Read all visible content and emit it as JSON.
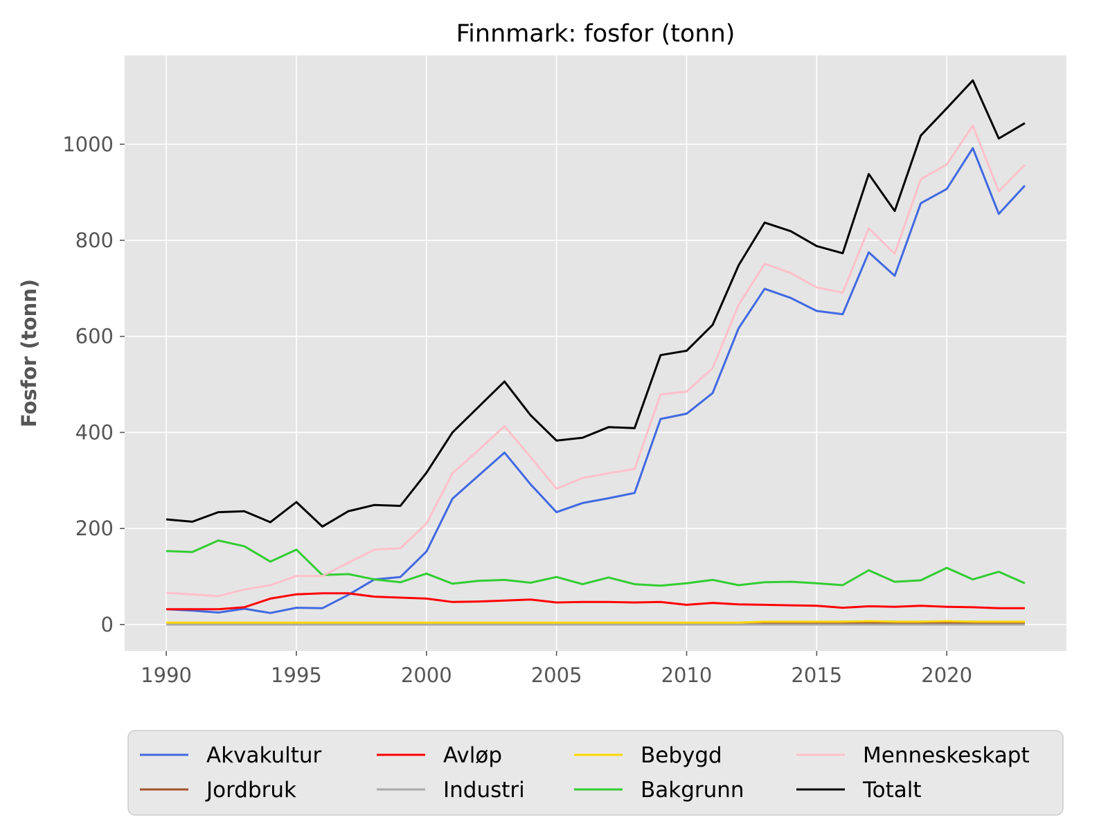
{
  "chart_data": {
    "type": "line",
    "title": "Finnmark: fosfor (tonn)",
    "xlabel": "",
    "ylabel": "Fosfor (tonn)",
    "xlim": [
      1988.4,
      2024.6
    ],
    "ylim": [
      -55,
      1185
    ],
    "xticks": [
      1990,
      1995,
      2000,
      2005,
      2010,
      2015,
      2020
    ],
    "yticks": [
      0,
      200,
      400,
      600,
      800,
      1000
    ],
    "grid": true,
    "legend": {
      "placement": "bottom-center",
      "columns": 4
    },
    "x": [
      1990,
      1991,
      1992,
      1993,
      1994,
      1995,
      1996,
      1997,
      1998,
      1999,
      2000,
      2001,
      2002,
      2003,
      2004,
      2005,
      2006,
      2007,
      2008,
      2009,
      2010,
      2011,
      2012,
      2013,
      2014,
      2015,
      2016,
      2017,
      2018,
      2019,
      2020,
      2021,
      2022,
      2023
    ],
    "series": [
      {
        "name": "Akvakultur",
        "color": "#4169e1",
        "values": [
          32,
          29,
          25,
          33,
          24,
          35,
          34,
          62,
          94,
          99,
          152,
          262,
          310,
          358,
          292,
          234,
          253,
          263,
          274,
          428,
          439,
          482,
          617,
          699,
          680,
          653,
          646,
          775,
          726,
          877,
          907,
          992,
          855,
          914
        ]
      },
      {
        "name": "Jordbruk",
        "color": "#a0522d",
        "values": [
          2,
          2,
          2,
          2,
          2,
          2,
          2,
          2,
          2,
          2,
          2,
          2,
          2,
          2,
          2,
          2,
          2,
          2,
          2,
          2,
          2,
          2,
          2,
          3,
          3,
          3,
          3,
          4,
          3,
          3,
          4,
          4,
          4,
          4
        ]
      },
      {
        "name": "Avløp",
        "color": "#ff0000",
        "values": [
          32,
          32,
          32,
          36,
          54,
          63,
          65,
          65,
          58,
          56,
          54,
          47,
          48,
          50,
          52,
          46,
          47,
          47,
          46,
          47,
          41,
          45,
          42,
          41,
          40,
          39,
          35,
          38,
          37,
          39,
          37,
          36,
          34,
          34
        ]
      },
      {
        "name": "Industri",
        "color": "#a9a9a9",
        "values": [
          0,
          0,
          0,
          0,
          0,
          0,
          0,
          0,
          0,
          0,
          0,
          0,
          0,
          0,
          0,
          0,
          0,
          0,
          0,
          0,
          0,
          0,
          0,
          0,
          0,
          0,
          0,
          0,
          0,
          0,
          0,
          0,
          0,
          0
        ]
      },
      {
        "name": "Bebygd",
        "color": "#ffd700",
        "values": [
          4,
          4,
          4,
          4,
          4,
          4,
          4,
          4,
          4,
          4,
          4,
          4,
          4,
          4,
          4,
          4,
          4,
          4,
          4,
          4,
          4,
          4,
          4,
          6,
          6,
          6,
          6,
          7,
          6,
          6,
          7,
          6,
          6,
          6
        ]
      },
      {
        "name": "Bakgrunn",
        "color": "#32cd32",
        "values": [
          153,
          151,
          175,
          163,
          131,
          156,
          103,
          105,
          94,
          88,
          106,
          85,
          91,
          93,
          87,
          99,
          84,
          98,
          84,
          81,
          86,
          93,
          82,
          88,
          89,
          86,
          82,
          113,
          89,
          92,
          118,
          94,
          110,
          86
        ]
      },
      {
        "name": "Menneskeskapt",
        "color": "#ffc0cb",
        "values": [
          66,
          63,
          59,
          73,
          82,
          101,
          101,
          129,
          156,
          159,
          210,
          315,
          363,
          413,
          349,
          283,
          305,
          315,
          324,
          479,
          485,
          534,
          666,
          751,
          732,
          702,
          691,
          825,
          772,
          927,
          958,
          1039,
          902,
          957
        ]
      },
      {
        "name": "Totalt",
        "color": "#000000",
        "values": [
          219,
          214,
          234,
          236,
          213,
          255,
          204,
          236,
          249,
          247,
          316,
          400,
          453,
          506,
          436,
          383,
          389,
          411,
          409,
          561,
          570,
          624,
          748,
          837,
          819,
          788,
          773,
          938,
          861,
          1018,
          1075,
          1133,
          1012,
          1044
        ]
      }
    ]
  }
}
